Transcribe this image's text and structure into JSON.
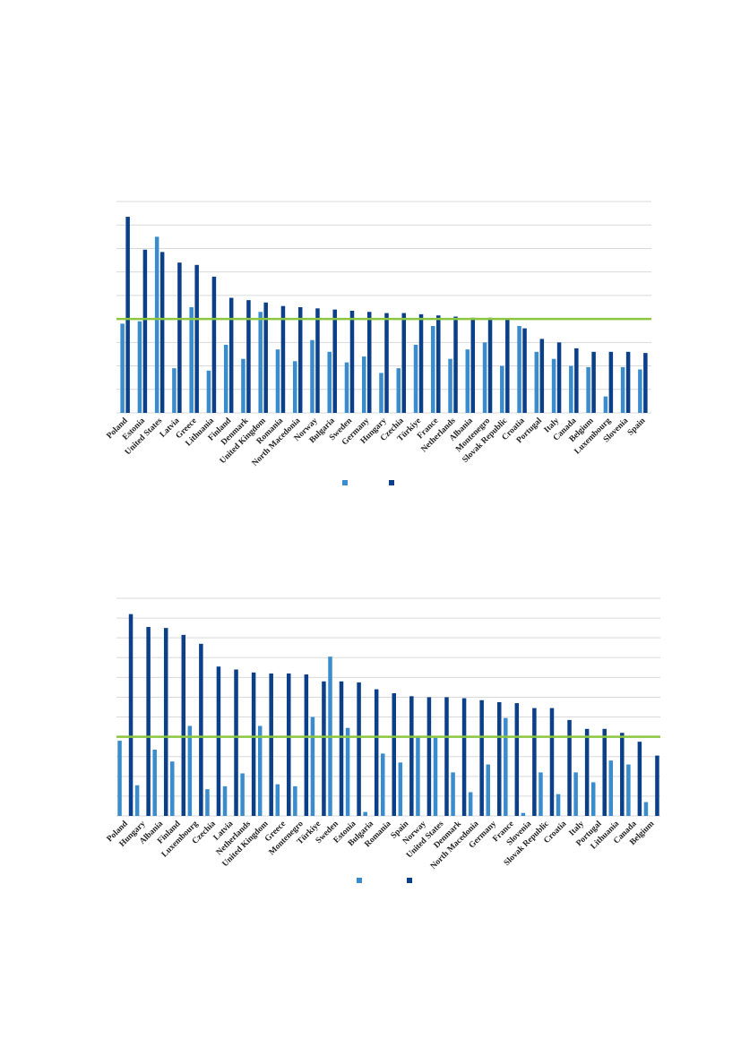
{
  "colors": {
    "series1": "#3a8ccc",
    "series2": "#0b3f87",
    "reference_line": "#8cc63f",
    "grid": "#d9d9d9"
  },
  "chart_data": [
    {
      "type": "bar",
      "grid": true,
      "legend_placement": "bottom-center",
      "ylim": [
        0,
        9
      ],
      "reference_line": 4,
      "categories": [
        "Poland",
        "Estonia",
        "United States",
        "Latvia",
        "Greece",
        "Lithuania",
        "Finland",
        "Denmark",
        "United Kingdom",
        "Romania",
        "North Macedonia",
        "Norway",
        "Bulgaria",
        "Sweden",
        "Germany",
        "Hungary",
        "Czechia",
        "Türkiye",
        "France",
        "Netherlands",
        "Albania",
        "Montenegro",
        "Slovak Republic",
        "Croatia",
        "Portugal",
        "Italy",
        "Canada",
        "Belgium",
        "Luxembourg",
        "Slovenia",
        "Spain"
      ],
      "series": [
        {
          "values": [
            3.8,
            3.9,
            7.5,
            1.9,
            4.5,
            1.8,
            2.9,
            2.3,
            4.3,
            2.7,
            2.2,
            3.1,
            2.6,
            2.15,
            2.4,
            1.7,
            1.9,
            2.9,
            3.7,
            2.3,
            2.7,
            3.0,
            2.0,
            3.7,
            2.6,
            2.3,
            2.0,
            1.95,
            0.7,
            1.95,
            1.85
          ]
        },
        {
          "values": [
            8.35,
            6.95,
            6.85,
            6.4,
            6.3,
            5.8,
            4.9,
            4.8,
            4.7,
            4.55,
            4.5,
            4.45,
            4.4,
            4.35,
            4.3,
            4.25,
            4.25,
            4.2,
            4.15,
            4.1,
            4.05,
            4.05,
            4.0,
            3.6,
            3.15,
            3.0,
            2.75,
            2.6,
            2.6,
            2.6,
            2.55
          ]
        }
      ]
    },
    {
      "type": "bar",
      "grid": true,
      "legend_placement": "bottom-center",
      "ylim": [
        0,
        11
      ],
      "reference_line": 4,
      "categories": [
        "Poland",
        "Hungary",
        "Albania",
        "Finland",
        "Luxembourg",
        "Czechia",
        "Latvia",
        "Netherlands",
        "United Kingdom",
        "Greece",
        "Montenegro",
        "Türkiye",
        "Sweden",
        "Estonia",
        "Bulgaria",
        "Romania",
        "Spain",
        "Norway",
        "United States",
        "Denmark",
        "North Macedonia",
        "Germany",
        "France",
        "Slovenia",
        "Slovak Republic",
        "Croatia",
        "Italy",
        "Portugal",
        "Lithuania",
        "Canada",
        "Belgium"
      ],
      "series": [
        {
          "values": [
            3.8,
            1.55,
            3.35,
            2.75,
            4.55,
            1.35,
            1.5,
            2.15,
            4.55,
            1.6,
            1.5,
            5.0,
            8.05,
            4.45,
            0.2,
            3.15,
            2.7,
            4.0,
            3.95,
            2.2,
            1.2,
            2.6,
            4.95,
            0.15,
            2.2,
            1.1,
            2.2,
            1.7,
            2.8,
            2.6,
            0.7
          ]
        },
        {
          "values": [
            10.2,
            9.55,
            9.5,
            9.15,
            8.7,
            7.55,
            7.4,
            7.25,
            7.2,
            7.2,
            7.15,
            6.8,
            6.8,
            6.75,
            6.4,
            6.2,
            6.05,
            6.0,
            6.0,
            5.95,
            5.85,
            5.75,
            5.7,
            5.45,
            5.45,
            4.85,
            4.4,
            4.4,
            4.2,
            3.75,
            3.05
          ]
        }
      ]
    }
  ]
}
